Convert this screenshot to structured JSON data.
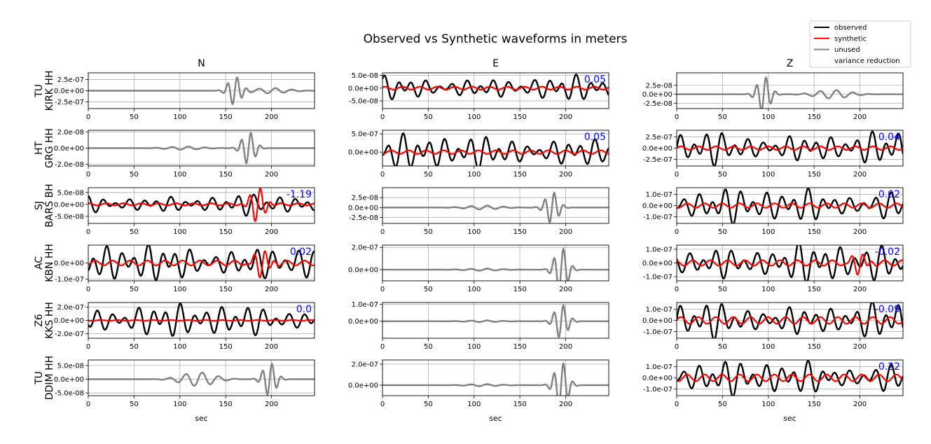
{
  "title": "Observed vs Synthetic waveforms in meters",
  "colors": {
    "observed": "#000000",
    "synthetic": "#ff0000",
    "unused": "#808080",
    "vr": "#0000ff",
    "grid": "#b0b0b0"
  },
  "legend": {
    "placement": "top-right",
    "entries": [
      {
        "label": "observed",
        "color": "#000000",
        "line": true
      },
      {
        "label": "synthetic",
        "color": "#ff0000",
        "line": true
      },
      {
        "label": "unused",
        "color": "#808080",
        "line": true
      },
      {
        "label": "variance reduction",
        "color": "#0000ff",
        "line": false
      }
    ]
  },
  "columns": [
    "N",
    "E",
    "Z"
  ],
  "xlabel": "sec",
  "xticks": [
    0,
    50,
    100,
    150,
    200
  ],
  "xlim": [
    0,
    247
  ],
  "rows": [
    {
      "network": "TU",
      "station": "KIRK HH"
    },
    {
      "network": "HT",
      "station": "GRG HH"
    },
    {
      "network": "SJ",
      "station": "BARS BH"
    },
    {
      "network": "AC",
      "station": "KBN HH"
    },
    {
      "network": "Z6",
      "station": "KKS HH"
    },
    {
      "network": "TU",
      "station": "DDIM HH"
    }
  ],
  "chart_data": {
    "type": "line",
    "title": "Observed vs Synthetic waveforms in meters",
    "xlabel": "sec",
    "grid": true,
    "panels": [
      {
        "row": 0,
        "col": "N",
        "used": false,
        "vr": "",
        "ylim": [
          -4e-07,
          4e-07
        ],
        "yticks": [
          2.5e-07,
          0,
          -2.5e-07
        ],
        "yticklabels": [
          "2.5e-07",
          "0.0e+00",
          "-2.5e-07"
        ],
        "unused_burst": [
          [
            160,
            3.2e-07
          ],
          [
            200,
            6e-08
          ]
        ]
      },
      {
        "row": 0,
        "col": "E",
        "used": true,
        "vr": "0.05",
        "ylim": [
          -8e-08,
          6e-08
        ],
        "yticks": [
          5e-08,
          0,
          -5e-08
        ],
        "yticklabels": [
          "5.0e-08",
          "0.0e+00",
          "-5.0e-08"
        ],
        "obs_amp": 4e-08,
        "obs_start": 0,
        "syn_amp": 6e-09,
        "syn_start": 0
      },
      {
        "row": 0,
        "col": "Z",
        "used": false,
        "vr": "",
        "ylim": [
          -4e-08,
          6e-08
        ],
        "yticks": [
          2.5e-08,
          0,
          -2.5e-08
        ],
        "yticklabels": [
          "2.5e-08",
          "0.0e+00",
          "-2.5e-08"
        ],
        "unused_burst": [
          [
            95,
            5e-08
          ],
          [
            170,
            1.2e-08
          ]
        ]
      },
      {
        "row": 1,
        "col": "N",
        "used": false,
        "vr": "",
        "ylim": [
          -2.2e-08,
          2.2e-08
        ],
        "yticks": [
          2e-08,
          0,
          -2e-08
        ],
        "yticklabels": [
          "2.0e-08",
          "0.0e+00",
          "-2.0e-08"
        ],
        "unused_burst": [
          [
            175,
            2e-08
          ],
          [
            105,
            2e-09
          ]
        ]
      },
      {
        "row": 1,
        "col": "E",
        "used": true,
        "vr": "0.05",
        "ylim": [
          -3.8e-07,
          6e-07
        ],
        "yticks": [
          5e-07,
          0
        ],
        "yticklabels": [
          "5.0e-07",
          "0.0e+00"
        ],
        "obs_amp": 4e-07,
        "obs_start": 0,
        "syn_amp": 5e-08,
        "syn_start": 0
      },
      {
        "row": 1,
        "col": "Z",
        "used": true,
        "vr": "0.04",
        "ylim": [
          -4e-07,
          4e-07
        ],
        "yticks": [
          2.5e-07,
          0,
          -2.5e-07
        ],
        "yticklabels": [
          "2.5e-07",
          "0.0e+00",
          "-2.5e-07"
        ],
        "obs_amp": 3.2e-07,
        "obs_start": 0,
        "syn_amp": 4e-08,
        "syn_start": 0
      },
      {
        "row": 2,
        "col": "N",
        "used": true,
        "vr": "-1.19",
        "ylim": [
          -8e-08,
          7e-08
        ],
        "yticks": [
          5e-08,
          0,
          -5e-08
        ],
        "yticklabels": [
          "5.0e-08",
          "0.0e+00",
          "-5.0e-08"
        ],
        "obs_amp": 3.5e-08,
        "obs_start": 0,
        "syn_amp": 5e-09,
        "syn_start": 0,
        "syn_burst": [
          185,
          7e-08
        ]
      },
      {
        "row": 2,
        "col": "E",
        "used": false,
        "vr": "",
        "ylim": [
          -4e-08,
          5e-08
        ],
        "yticks": [
          2.5e-08,
          0,
          -2.5e-08
        ],
        "yticklabels": [
          "2.5e-08",
          "0.0e+00",
          "-2.5e-08"
        ],
        "unused_burst": [
          [
            185,
            4e-08
          ],
          [
            110,
            5e-09
          ]
        ]
      },
      {
        "row": 2,
        "col": "Z",
        "used": true,
        "vr": "0.02",
        "ylim": [
          -1.6e-07,
          1.6e-07
        ],
        "yticks": [
          1e-07,
          0,
          -1e-07
        ],
        "yticklabels": [
          "1.0e-07",
          "0.0e+00",
          "-1.0e-07"
        ],
        "obs_amp": 1.3e-07,
        "obs_start": 0,
        "syn_amp": 2e-08,
        "syn_start": 0
      },
      {
        "row": 3,
        "col": "N",
        "used": true,
        "vr": "0.02",
        "ylim": [
          -1.1e-07,
          1.1e-07
        ],
        "yticks": [
          0,
          -1e-07
        ],
        "yticklabels": [
          "0.0e+00",
          "-1.0e-07"
        ],
        "obs_amp": 1e-07,
        "obs_start": 0,
        "syn_amp": 1.5e-08,
        "syn_start": 0,
        "syn_burst": [
          190,
          8e-08
        ]
      },
      {
        "row": 3,
        "col": "E",
        "used": false,
        "vr": "",
        "ylim": [
          -1e-07,
          2.2e-07
        ],
        "yticks": [
          2e-07,
          0
        ],
        "yticklabels": [
          "2.0e-07",
          "0.0e+00"
        ],
        "unused_burst": [
          [
            195,
            2e-07
          ],
          [
            110,
            1e-08
          ]
        ]
      },
      {
        "row": 3,
        "col": "Z",
        "used": true,
        "vr": "-0.02",
        "ylim": [
          -1.3e-07,
          1.3e-07
        ],
        "yticks": [
          1e-07,
          0,
          -1e-07
        ],
        "yticklabels": [
          "1.0e-07",
          "0.0e+00",
          "-1.0e-07"
        ],
        "obs_amp": 1.2e-07,
        "obs_start": 0,
        "syn_amp": 2e-08,
        "syn_start": 0,
        "syn_burst": [
          200,
          7e-08
        ]
      },
      {
        "row": 4,
        "col": "N",
        "used": true,
        "vr": "0.0",
        "ylim": [
          -2.7e-07,
          2.7e-07
        ],
        "yticks": [
          2e-07,
          0,
          -2e-07
        ],
        "yticklabels": [
          "2.0e-07",
          "0.0e+00",
          "-2.0e-07"
        ],
        "obs_amp": 2.1e-07,
        "obs_start": 0,
        "syn_amp": 5e-09,
        "syn_start": 0
      },
      {
        "row": 4,
        "col": "E",
        "used": false,
        "vr": "",
        "ylim": [
          -1e-07,
          1.1e-07
        ],
        "yticks": [
          1e-07,
          0
        ],
        "yticklabels": [
          "1.0e-07",
          "0.0e+00"
        ],
        "unused_burst": [
          [
            195,
            1e-07
          ],
          [
            110,
            5e-09
          ]
        ]
      },
      {
        "row": 4,
        "col": "Z",
        "used": true,
        "vr": "-0.09",
        "ylim": [
          -1.6e-07,
          1.6e-07
        ],
        "yticks": [
          1e-07,
          0,
          -1e-07
        ],
        "yticklabels": [
          "1.0e-07",
          "0.0e+00",
          "-1.0e-07"
        ],
        "obs_amp": 1.4e-07,
        "obs_start": 0,
        "syn_amp": 3e-08,
        "syn_start": 0
      },
      {
        "row": 5,
        "col": "N",
        "used": false,
        "vr": "",
        "ylim": [
          -6e-08,
          7e-08
        ],
        "yticks": [
          5e-08,
          0,
          -5e-08
        ],
        "yticklabels": [
          "5.0e-08",
          "0.0e+00",
          "-5.0e-08"
        ],
        "unused_burst": [
          [
            198,
            6e-08
          ],
          [
            120,
            2.5e-08
          ]
        ]
      },
      {
        "row": 5,
        "col": "E",
        "used": false,
        "vr": "",
        "ylim": [
          -1e-07,
          2.4e-07
        ],
        "yticks": [
          2e-07,
          0
        ],
        "yticklabels": [
          "2.0e-07",
          "0.0e+00"
        ],
        "unused_burst": [
          [
            195,
            2.2e-07
          ],
          [
            110,
            1e-08
          ]
        ]
      },
      {
        "row": 5,
        "col": "Z",
        "used": true,
        "vr": "0.22",
        "ylim": [
          -1.6e-07,
          1.6e-07
        ],
        "yticks": [
          1e-07,
          0,
          -1e-07
        ],
        "yticklabels": [
          "1.0e-07",
          "0.0e+00",
          "-1.0e-07"
        ],
        "obs_amp": 1.3e-07,
        "obs_start": 0,
        "syn_amp": 3e-08,
        "syn_start": 0
      }
    ]
  }
}
